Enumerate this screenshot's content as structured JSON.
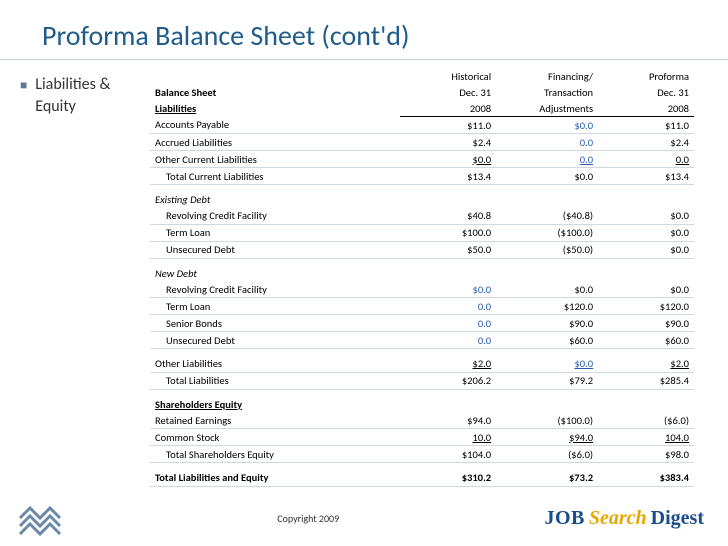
{
  "title": "Proforma Balance Sheet (cont'd)",
  "bullet": "Liabilities & Equity",
  "copyright": "Copyright 2009",
  "logo_right": {
    "p1": "JOB",
    "p2": "Search",
    "p3": "Digest"
  },
  "colors": {
    "title": "#1f5c8b",
    "title_rule": "#c8d4de",
    "row_rule": "#d0d8e0",
    "link_blue": "#2a5db0",
    "bullet_marker": "#5a7a94"
  },
  "headers": {
    "row1": [
      "",
      "Historical",
      "Financing/",
      "Proforma"
    ],
    "row2": [
      "Balance Sheet",
      "Dec. 31",
      "Transaction",
      "Dec. 31"
    ],
    "row3": [
      "Liabilities",
      "2008",
      "Adjustments",
      "2008"
    ]
  },
  "rows": [
    {
      "type": "data",
      "label": "Accounts Payable",
      "indent": 0,
      "c1": "$11.0",
      "c2": "$0.0",
      "c3": "$11.0",
      "c2_blue": true
    },
    {
      "type": "data",
      "label": "Accrued Liabilities",
      "indent": 0,
      "c1": "$2.4",
      "c2": "0.0",
      "c3": "$2.4",
      "c2_blue": true
    },
    {
      "type": "data",
      "label": "Other Current Liabilities",
      "indent": 0,
      "c1": "$0.0",
      "c2": "0.0",
      "c3": "0.0",
      "c2_blue": true,
      "underline": true
    },
    {
      "type": "data",
      "label": "Total Current Liabilities",
      "indent": 1,
      "c1": "$13.4",
      "c2": "$0.0",
      "c3": "$13.4"
    },
    {
      "type": "spacer"
    },
    {
      "type": "italic",
      "label": "Existing Debt"
    },
    {
      "type": "data",
      "label": "Revolving Credit Facility",
      "indent": 1,
      "c1": "$40.8",
      "c2": "($40.8)",
      "c3": "$0.0"
    },
    {
      "type": "data",
      "label": "Term Loan",
      "indent": 1,
      "c1": "$100.0",
      "c2": "($100.0)",
      "c3": "$0.0"
    },
    {
      "type": "data",
      "label": "Unsecured Debt",
      "indent": 1,
      "c1": "$50.0",
      "c2": "($50.0)",
      "c3": "$0.0"
    },
    {
      "type": "spacer"
    },
    {
      "type": "italic",
      "label": "New Debt"
    },
    {
      "type": "data",
      "label": "Revolving Credit Facility",
      "indent": 1,
      "c1": "$0.0",
      "c2": "$0.0",
      "c3": "$0.0",
      "c1_blue": true
    },
    {
      "type": "data",
      "label": "Term Loan",
      "indent": 1,
      "c1": "0.0",
      "c2": "$120.0",
      "c3": "$120.0",
      "c1_blue": true
    },
    {
      "type": "data",
      "label": "Senior Bonds",
      "indent": 1,
      "c1": "0.0",
      "c2": "$90.0",
      "c3": "$90.0",
      "c1_blue": true
    },
    {
      "type": "data",
      "label": "Unsecured Debt",
      "indent": 1,
      "c1": "0.0",
      "c2": "$60.0",
      "c3": "$60.0",
      "c1_blue": true
    },
    {
      "type": "spacer"
    },
    {
      "type": "data",
      "label": "Other Liabilities",
      "indent": 0,
      "c1": "$2.0",
      "c2": "$0.0",
      "c3": "$2.0",
      "c2_blue": true,
      "underline": true
    },
    {
      "type": "data",
      "label": "Total Liabilities",
      "indent": 1,
      "c1": "$206.2",
      "c2": "$79.2",
      "c3": "$285.4"
    },
    {
      "type": "spacer"
    },
    {
      "type": "section",
      "label": "Shareholders Equity"
    },
    {
      "type": "data",
      "label": "Retained Earnings",
      "indent": 0,
      "c1": "$94.0",
      "c2": "($100.0)",
      "c3": "($6.0)"
    },
    {
      "type": "data",
      "label": "Common Stock",
      "indent": 0,
      "c1": "10.0",
      "c2": "$94.0",
      "c3": "104.0",
      "underline": true
    },
    {
      "type": "data",
      "label": "Total Shareholders Equity",
      "indent": 1,
      "c1": "$104.0",
      "c2": "($6.0)",
      "c3": "$98.0"
    },
    {
      "type": "spacer"
    },
    {
      "type": "data",
      "label": "Total Liabilities and Equity",
      "indent": 0,
      "c1": "$310.2",
      "c2": "$73.2",
      "c3": "$383.4",
      "bold": true
    }
  ]
}
